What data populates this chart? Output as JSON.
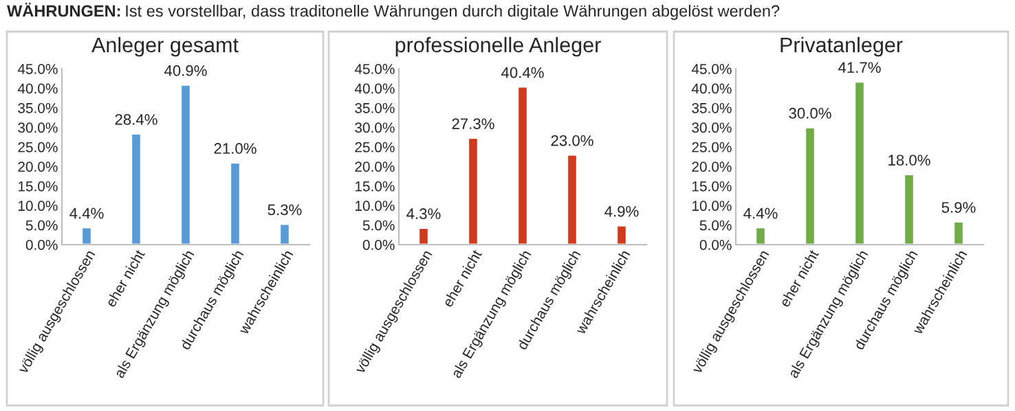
{
  "chart_data": [
    {
      "type": "bar",
      "title": "Anleger gesamt",
      "annotations": [
        "WÄHRUNGEN:",
        "Ist es vorstellbar, dass traditonelle Währungen durch digitale Währungen abgelöst werden?"
      ],
      "categories": [
        "völlig ausgeschlossen",
        "eher nicht",
        "als Ergänzung möglich",
        "durchaus möglich",
        "wahrscheinlich"
      ],
      "values": [
        4.4,
        28.4,
        40.9,
        21.0,
        5.3
      ],
      "color": "#5b9bd5",
      "value_labels": [
        "4.4%",
        "28.4%",
        "40.9%",
        "21.0%",
        "5.3%"
      ],
      "ylim": [
        0,
        45
      ],
      "yticks": [
        {
          "value": 0,
          "label": "0.0%"
        },
        {
          "value": 5,
          "label": "5.0%"
        },
        {
          "value": 10,
          "label": "10.0%"
        },
        {
          "value": 15,
          "label": "15.0%"
        },
        {
          "value": 20,
          "label": "20.0%"
        },
        {
          "value": 25,
          "label": "25.0%"
        },
        {
          "value": 30,
          "label": "30.0%"
        },
        {
          "value": 35,
          "label": "35.0%"
        },
        {
          "value": 40,
          "label": "40.0%"
        },
        {
          "value": 45,
          "label": "45.0%"
        }
      ],
      "grid": false
    },
    {
      "type": "bar",
      "title": "professionelle Anleger",
      "categories": [
        "völlig ausgeschlossen",
        "eher nicht",
        "als Ergänzung möglich",
        "durchaus möglich",
        "wahrscheinlich"
      ],
      "values": [
        4.3,
        27.3,
        40.4,
        23.0,
        4.9
      ],
      "color": "#d03b1e",
      "value_labels": [
        "4.3%",
        "27.3%",
        "40.4%",
        "23.0%",
        "4.9%"
      ],
      "ylim": [
        0,
        45
      ],
      "yticks": [
        {
          "value": 0,
          "label": "0.0%"
        },
        {
          "value": 5,
          "label": "5.0%"
        },
        {
          "value": 10,
          "label": "10.0%"
        },
        {
          "value": 15,
          "label": "15.0%"
        },
        {
          "value": 20,
          "label": "20.0%"
        },
        {
          "value": 25,
          "label": "25.0%"
        },
        {
          "value": 30,
          "label": "30.0%"
        },
        {
          "value": 35,
          "label": "35.0%"
        },
        {
          "value": 40,
          "label": "40.0%"
        },
        {
          "value": 45,
          "label": "45.0%"
        }
      ],
      "grid": false
    },
    {
      "type": "bar",
      "title": "Privatanleger",
      "categories": [
        "völlig ausgeschlossen",
        "eher nicht",
        "als Ergänzung möglich",
        "durchaus möglich",
        "wahrscheinlich"
      ],
      "values": [
        4.4,
        30.0,
        41.7,
        18.0,
        5.9
      ],
      "color": "#70ad47",
      "value_labels": [
        "4.4%",
        "30.0%",
        "41.7%",
        "18.0%",
        "5.9%"
      ],
      "ylim": [
        0,
        45
      ],
      "yticks": [
        {
          "value": 0,
          "label": "0.0%"
        },
        {
          "value": 5,
          "label": "5.0%"
        },
        {
          "value": 10,
          "label": "10.0%"
        },
        {
          "value": 15,
          "label": "15.0%"
        },
        {
          "value": 20,
          "label": "20.0%"
        },
        {
          "value": 25,
          "label": "25.0%"
        },
        {
          "value": 30,
          "label": "30.0%"
        },
        {
          "value": 35,
          "label": "35.0%"
        },
        {
          "value": 40,
          "label": "40.0%"
        },
        {
          "value": 45,
          "label": "45.0%"
        }
      ],
      "grid": false
    }
  ]
}
